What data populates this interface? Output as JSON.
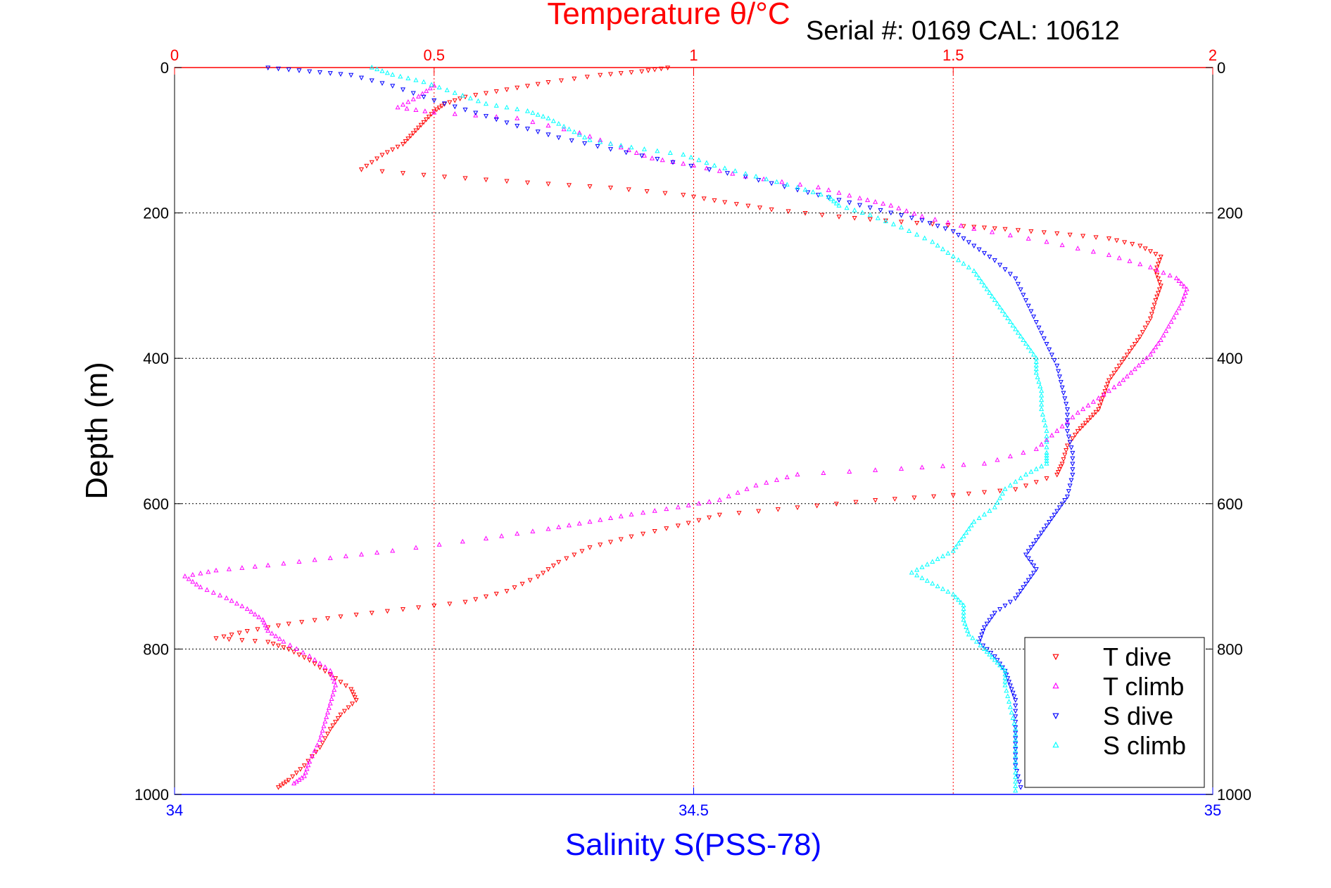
{
  "chart_data": {
    "type": "scatter",
    "title": "Temperature θ/°C",
    "annotation": "Serial #: 0169 CAL: 10612",
    "xlabel_bottom": "Salinity S(PSS-78)",
    "xlabel_top": "Temperature θ/°C",
    "ylabel": "Depth (m)",
    "xlim_bottom": [
      34,
      35
    ],
    "xlim_top": [
      0,
      2
    ],
    "ylim": [
      0,
      1000
    ],
    "y_inverted": true,
    "xticks_bottom": [
      34,
      34.5,
      35
    ],
    "xtick_labels_bottom": [
      "34",
      "34.5",
      "35"
    ],
    "xticks_top": [
      0,
      0.5,
      1,
      1.5,
      2
    ],
    "xtick_labels_top": [
      "0",
      "0.5",
      "1",
      "1.5",
      "2"
    ],
    "yticks": [
      0,
      200,
      400,
      600,
      800,
      1000
    ],
    "ytick_labels": [
      "0",
      "200",
      "400",
      "600",
      "800",
      "1000"
    ],
    "grid": true,
    "legend_position": "bottom-right",
    "colors": {
      "temperature_axis": "#ff0000",
      "salinity_axis": "#0000ff",
      "T_dive": "#ff0000",
      "T_climb": "#ff00ff",
      "S_dive": "#0000ff",
      "S_climb": "#00ffff"
    },
    "series": [
      {
        "name": "T dive",
        "axis": "temperature",
        "color": "#ff0000",
        "marker": "triangle-down",
        "points": [
          [
            0.95,
            0
          ],
          [
            0.9,
            5
          ],
          [
            0.82,
            10
          ],
          [
            0.72,
            20
          ],
          [
            0.64,
            30
          ],
          [
            0.56,
            40
          ],
          [
            0.52,
            50
          ],
          [
            0.5,
            60
          ],
          [
            0.48,
            75
          ],
          [
            0.46,
            90
          ],
          [
            0.44,
            105
          ],
          [
            0.4,
            120
          ],
          [
            0.36,
            140
          ],
          [
            0.52,
            150
          ],
          [
            0.68,
            158
          ],
          [
            0.84,
            165
          ],
          [
            0.98,
            175
          ],
          [
            1.06,
            185
          ],
          [
            1.15,
            195
          ],
          [
            1.28,
            205
          ],
          [
            1.4,
            212
          ],
          [
            1.52,
            218
          ],
          [
            1.6,
            222
          ],
          [
            1.7,
            228
          ],
          [
            1.8,
            235
          ],
          [
            1.86,
            245
          ],
          [
            1.9,
            260
          ],
          [
            1.89,
            280
          ],
          [
            1.9,
            300
          ],
          [
            1.89,
            320
          ],
          [
            1.88,
            345
          ],
          [
            1.86,
            370
          ],
          [
            1.84,
            390
          ],
          [
            1.82,
            410
          ],
          [
            1.8,
            430
          ],
          [
            1.79,
            450
          ],
          [
            1.78,
            470
          ],
          [
            1.76,
            485
          ],
          [
            1.74,
            500
          ],
          [
            1.72,
            520
          ],
          [
            1.71,
            545
          ],
          [
            1.7,
            560
          ],
          [
            1.62,
            580
          ],
          [
            1.5,
            588
          ],
          [
            1.35,
            595
          ],
          [
            1.2,
            605
          ],
          [
            1.05,
            615
          ],
          [
            0.97,
            630
          ],
          [
            0.88,
            645
          ],
          [
            0.8,
            660
          ],
          [
            0.74,
            680
          ],
          [
            0.7,
            700
          ],
          [
            0.64,
            720
          ],
          [
            0.56,
            735
          ],
          [
            0.44,
            745
          ],
          [
            0.32,
            755
          ],
          [
            0.22,
            765
          ],
          [
            0.14,
            775
          ],
          [
            0.08,
            785
          ],
          [
            0.18,
            790
          ],
          [
            0.22,
            800
          ],
          [
            0.26,
            815
          ],
          [
            0.3,
            835
          ],
          [
            0.34,
            855
          ],
          [
            0.35,
            870
          ],
          [
            0.32,
            890
          ],
          [
            0.3,
            910
          ],
          [
            0.28,
            935
          ],
          [
            0.25,
            960
          ],
          [
            0.22,
            980
          ],
          [
            0.2,
            990
          ]
        ]
      },
      {
        "name": "T climb",
        "axis": "temperature",
        "color": "#ff00ff",
        "marker": "triangle-up",
        "points": [
          [
            0.5,
            25
          ],
          [
            0.47,
            40
          ],
          [
            0.43,
            55
          ],
          [
            0.5,
            62
          ],
          [
            0.66,
            70
          ],
          [
            0.78,
            90
          ],
          [
            0.86,
            110
          ],
          [
            0.92,
            125
          ],
          [
            1.0,
            135
          ],
          [
            1.1,
            150
          ],
          [
            1.24,
            165
          ],
          [
            1.32,
            180
          ],
          [
            1.38,
            190
          ],
          [
            1.44,
            205
          ],
          [
            1.54,
            222
          ],
          [
            1.68,
            240
          ],
          [
            1.8,
            258
          ],
          [
            1.88,
            275
          ],
          [
            1.93,
            290
          ],
          [
            1.95,
            305
          ],
          [
            1.94,
            325
          ],
          [
            1.92,
            350
          ],
          [
            1.9,
            375
          ],
          [
            1.88,
            395
          ],
          [
            1.85,
            415
          ],
          [
            1.82,
            435
          ],
          [
            1.78,
            455
          ],
          [
            1.74,
            475
          ],
          [
            1.7,
            500
          ],
          [
            1.66,
            525
          ],
          [
            1.56,
            545
          ],
          [
            1.4,
            552
          ],
          [
            1.2,
            560
          ],
          [
            1.12,
            575
          ],
          [
            1.05,
            595
          ],
          [
            0.97,
            605
          ],
          [
            0.88,
            615
          ],
          [
            0.8,
            625
          ],
          [
            0.72,
            635
          ],
          [
            0.6,
            648
          ],
          [
            0.42,
            665
          ],
          [
            0.3,
            675
          ],
          [
            0.18,
            685
          ],
          [
            0.08,
            692
          ],
          [
            0.02,
            700
          ],
          [
            0.05,
            715
          ],
          [
            0.1,
            730
          ],
          [
            0.14,
            745
          ],
          [
            0.17,
            760
          ],
          [
            0.18,
            775
          ],
          [
            0.21,
            790
          ],
          [
            0.26,
            810
          ],
          [
            0.3,
            830
          ],
          [
            0.31,
            850
          ],
          [
            0.3,
            875
          ],
          [
            0.29,
            900
          ],
          [
            0.28,
            925
          ],
          [
            0.26,
            955
          ],
          [
            0.25,
            975
          ],
          [
            0.23,
            985
          ]
        ]
      },
      {
        "name": "S dive",
        "axis": "salinity",
        "color": "#0000ff",
        "marker": "triangle-down",
        "points": [
          [
            34.09,
            0
          ],
          [
            34.13,
            5
          ],
          [
            34.17,
            10
          ],
          [
            34.21,
            25
          ],
          [
            34.25,
            45
          ],
          [
            34.29,
            62
          ],
          [
            34.33,
            80
          ],
          [
            34.37,
            96
          ],
          [
            34.42,
            112
          ],
          [
            34.48,
            130
          ],
          [
            34.55,
            150
          ],
          [
            34.6,
            168
          ],
          [
            34.64,
            182
          ],
          [
            34.68,
            196
          ],
          [
            34.72,
            210
          ],
          [
            34.75,
            225
          ],
          [
            34.77,
            245
          ],
          [
            34.79,
            265
          ],
          [
            34.81,
            290
          ],
          [
            34.82,
            320
          ],
          [
            34.83,
            350
          ],
          [
            34.84,
            380
          ],
          [
            34.85,
            410
          ],
          [
            34.855,
            440
          ],
          [
            34.86,
            470
          ],
          [
            34.86,
            500
          ],
          [
            34.865,
            530
          ],
          [
            34.865,
            560
          ],
          [
            34.86,
            590
          ],
          [
            34.85,
            610
          ],
          [
            34.84,
            630
          ],
          [
            34.83,
            650
          ],
          [
            34.82,
            670
          ],
          [
            34.83,
            690
          ],
          [
            34.82,
            710
          ],
          [
            34.81,
            730
          ],
          [
            34.79,
            750
          ],
          [
            34.78,
            770
          ],
          [
            34.775,
            790
          ],
          [
            34.79,
            810
          ],
          [
            34.8,
            830
          ],
          [
            34.805,
            850
          ],
          [
            34.81,
            870
          ],
          [
            34.81,
            900
          ],
          [
            34.81,
            930
          ],
          [
            34.81,
            960
          ],
          [
            34.815,
            990
          ]
        ]
      },
      {
        "name": "S climb",
        "axis": "salinity",
        "color": "#00ffff",
        "marker": "triangle-up",
        "points": [
          [
            34.19,
            0
          ],
          [
            34.21,
            10
          ],
          [
            34.24,
            20
          ],
          [
            34.27,
            35
          ],
          [
            34.3,
            50
          ],
          [
            34.34,
            60
          ],
          [
            34.36,
            70
          ],
          [
            34.38,
            85
          ],
          [
            34.4,
            100
          ],
          [
            34.44,
            110
          ],
          [
            34.49,
            120
          ],
          [
            34.52,
            135
          ],
          [
            34.56,
            150
          ],
          [
            34.6,
            165
          ],
          [
            34.63,
            178
          ],
          [
            34.64,
            190
          ],
          [
            34.67,
            203
          ],
          [
            34.7,
            220
          ],
          [
            34.73,
            240
          ],
          [
            34.75,
            260
          ],
          [
            34.77,
            280
          ],
          [
            34.78,
            300
          ],
          [
            34.79,
            320
          ],
          [
            34.8,
            340
          ],
          [
            34.81,
            360
          ],
          [
            34.82,
            380
          ],
          [
            34.83,
            400
          ],
          [
            34.83,
            420
          ],
          [
            34.835,
            445
          ],
          [
            34.835,
            470
          ],
          [
            34.84,
            500
          ],
          [
            34.84,
            530
          ],
          [
            34.84,
            545
          ],
          [
            34.82,
            560
          ],
          [
            34.8,
            580
          ],
          [
            34.79,
            605
          ],
          [
            34.77,
            625
          ],
          [
            34.76,
            645
          ],
          [
            34.75,
            665
          ],
          [
            34.73,
            680
          ],
          [
            34.71,
            695
          ],
          [
            34.73,
            710
          ],
          [
            34.75,
            725
          ],
          [
            34.76,
            740
          ],
          [
            34.76,
            760
          ],
          [
            34.765,
            780
          ],
          [
            34.78,
            800
          ],
          [
            34.79,
            815
          ],
          [
            34.8,
            830
          ],
          [
            34.8,
            850
          ],
          [
            34.805,
            880
          ],
          [
            34.81,
            910
          ],
          [
            34.81,
            940
          ],
          [
            34.81,
            970
          ],
          [
            34.81,
            995
          ]
        ]
      }
    ]
  }
}
